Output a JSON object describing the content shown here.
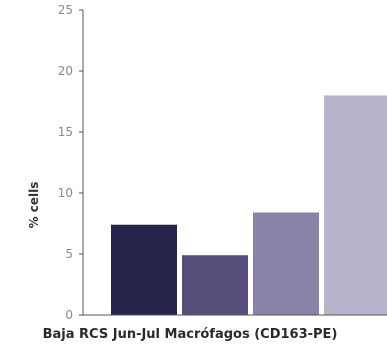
{
  "chart_data": {
    "type": "bar",
    "title": "Baja RCS Jun-Jul Macrófagos (CD163-PE)",
    "xlabel": "",
    "ylabel": "% cells",
    "ylim": [
      0,
      25
    ],
    "yticks": [
      "0",
      "5",
      "10",
      "15",
      "20",
      "25"
    ],
    "grid": false,
    "legend": "none",
    "values": [
      7.4,
      4.9,
      8.4,
      18.0
    ],
    "colors": [
      "#26244a",
      "#564d78",
      "#8a83a8",
      "#b8b2ca"
    ]
  }
}
